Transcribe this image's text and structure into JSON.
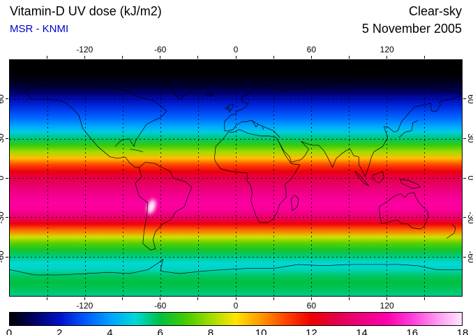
{
  "colors": {
    "source_label": "#0000cc",
    "frame": "#000000",
    "gridline": "#000000",
    "background": "#ffffff",
    "text": "#000000"
  },
  "chart_data": {
    "type": "heatmap",
    "title": "Vitamin-D UV dose (kJ/m2)",
    "source": "MSR - KNMI",
    "condition": "Clear-sky",
    "date": "5 November 2005",
    "projection": "equirectangular world map",
    "lon_range": [
      -180,
      180
    ],
    "lat_range": [
      -90,
      90
    ],
    "grid_step_deg": 30,
    "xlabel_ticks": [
      -120,
      -60,
      0,
      60,
      120
    ],
    "ylabel_ticks": [
      60,
      30,
      0,
      -30,
      -60
    ],
    "colorbar": {
      "units": "kJ/m2",
      "min": 0,
      "max": 18,
      "tick_labels": [
        0,
        2,
        4,
        6,
        8,
        10,
        12,
        14,
        16,
        18
      ],
      "stops": [
        {
          "value": 0,
          "color": "#000000"
        },
        {
          "value": 1,
          "color": "#000068"
        },
        {
          "value": 2,
          "color": "#0012c8"
        },
        {
          "value": 3,
          "color": "#0058ff"
        },
        {
          "value": 4,
          "color": "#00a2ff"
        },
        {
          "value": 5,
          "color": "#00d8d8"
        },
        {
          "value": 6,
          "color": "#00c040"
        },
        {
          "value": 7,
          "color": "#44cc00"
        },
        {
          "value": 8,
          "color": "#a0dc00"
        },
        {
          "value": 9,
          "color": "#ffe400"
        },
        {
          "value": 10,
          "color": "#ff9800"
        },
        {
          "value": 11,
          "color": "#ff4400"
        },
        {
          "value": 12,
          "color": "#ee0000"
        },
        {
          "value": 13,
          "color": "#e40048"
        },
        {
          "value": 14,
          "color": "#ee0080"
        },
        {
          "value": 15,
          "color": "#ff00aa"
        },
        {
          "value": 16,
          "color": "#ff3cdc"
        },
        {
          "value": 17,
          "color": "#ff96ee"
        },
        {
          "value": 18,
          "color": "#ffe6ff"
        }
      ]
    },
    "zonal_mean_dose": {
      "latitude": [
        90,
        85,
        80,
        75,
        70,
        65,
        60,
        55,
        50,
        45,
        40,
        35,
        30,
        25,
        20,
        15,
        10,
        5,
        0,
        -5,
        -10,
        -15,
        -20,
        -25,
        -30,
        -35,
        -40,
        -45,
        -50,
        -55,
        -60,
        -65,
        -70,
        -75,
        -80,
        -85,
        -90
      ],
      "dose_kj_m2": [
        0,
        0,
        0,
        0.2,
        0.5,
        1.0,
        1.8,
        2.3,
        2.8,
        3.3,
        4.0,
        4.8,
        5.7,
        6.8,
        8.0,
        9.5,
        11.0,
        12.2,
        13.0,
        13.5,
        14.0,
        14.5,
        14.8,
        14.5,
        13.6,
        12.2,
        10.5,
        8.5,
        7.2,
        6.3,
        5.6,
        5.0,
        5.2,
        5.8,
        6.0,
        5.8,
        5.5
      ]
    },
    "hotspot": {
      "region": "Andes / Altiplano, South America",
      "lon": -67,
      "lat": -22,
      "approx_value_kj_m2": 18
    }
  }
}
